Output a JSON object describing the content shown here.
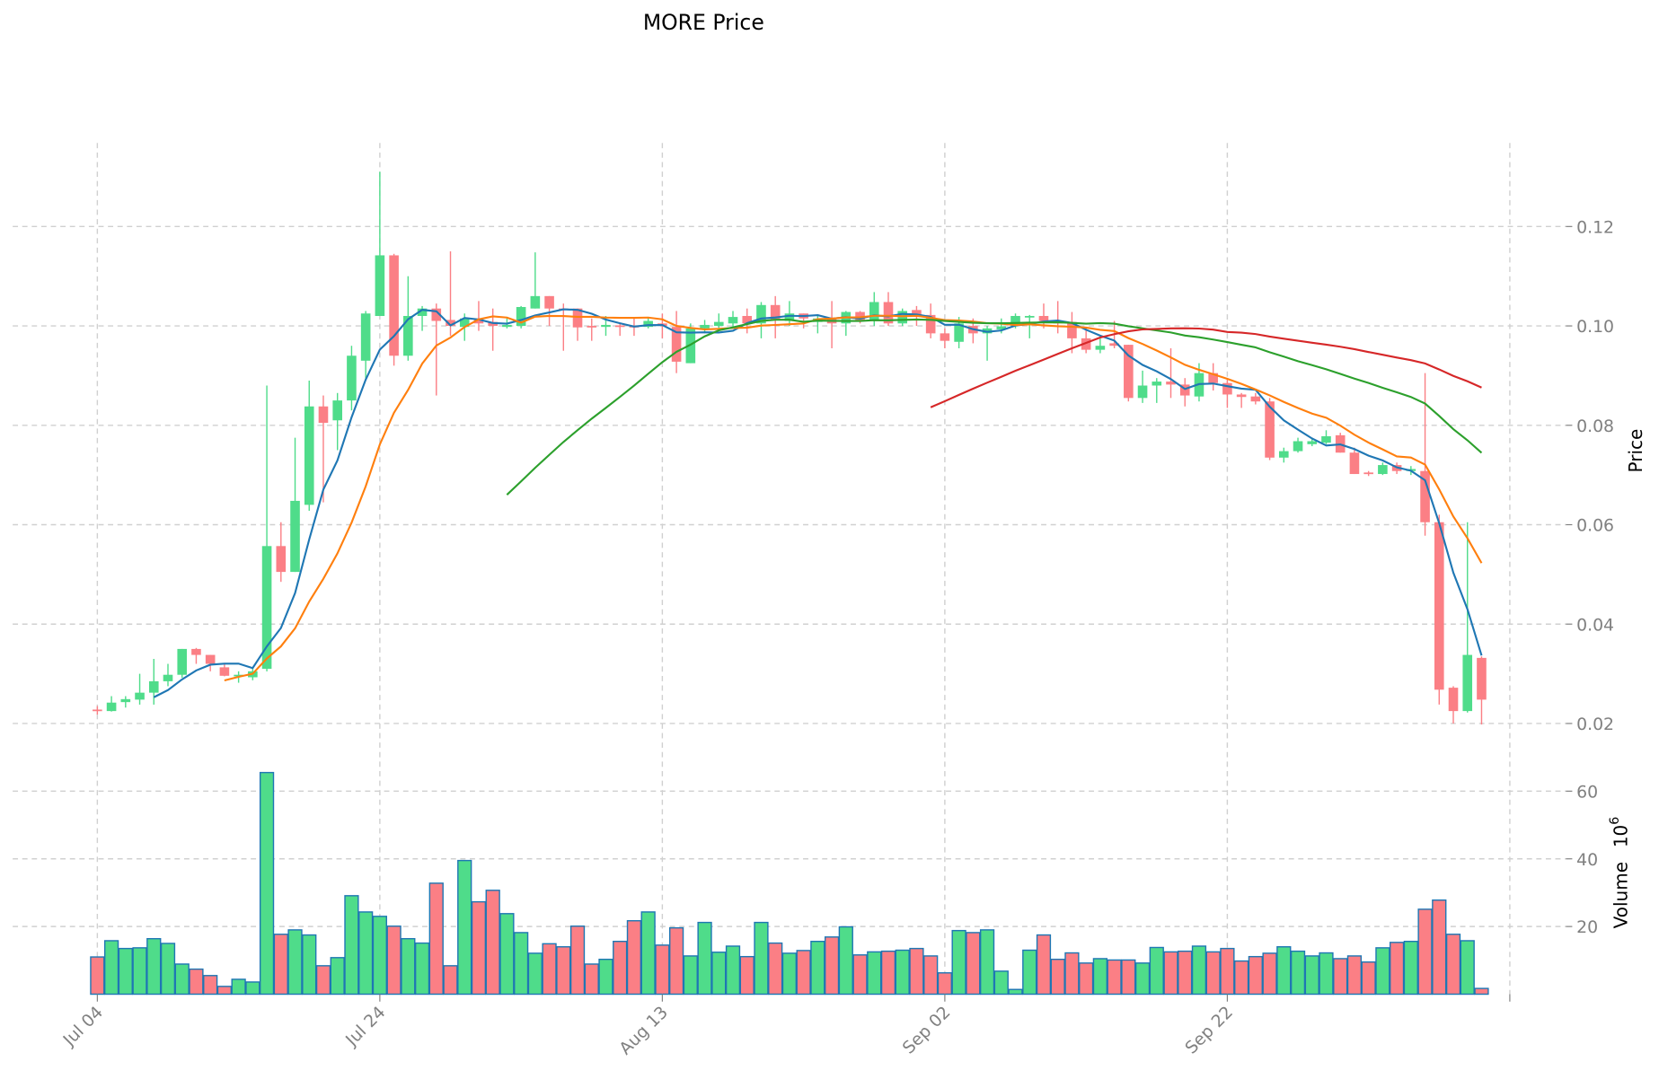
{
  "chart_data": {
    "type": "candlestick",
    "title": "MORE Price",
    "ylabel": "Price",
    "volume_label": "Volume",
    "volume_unit": "10",
    "volume_exp": "6",
    "ylim": [
      0.016,
      0.135
    ],
    "volume_ylim": [
      0,
      68
    ],
    "grid": true,
    "legend": "none",
    "price_ticks": [
      "0.02",
      "0.04",
      "0.06",
      "0.08",
      "0.10",
      "0.12"
    ],
    "volume_ticks": [
      "20",
      "40",
      "60"
    ],
    "x_ticks": [
      {
        "day": 0,
        "label": "Jul 04"
      },
      {
        "day": 20,
        "label": "Jul 24"
      },
      {
        "day": 40,
        "label": "Aug 13"
      },
      {
        "day": 60,
        "label": "Sep 02"
      },
      {
        "day": 80,
        "label": "Sep 22"
      },
      {
        "day": 100,
        "label": ""
      }
    ],
    "start_date": "Jul 04",
    "moving_averages": [
      {
        "window": 5,
        "color": "#1f77b4"
      },
      {
        "window": 10,
        "color": "#ff7f0e"
      },
      {
        "window": 30,
        "color": "#2ca02c"
      },
      {
        "window": 60,
        "color": "#d62728"
      }
    ],
    "colors": {
      "up": "#4fdc8a",
      "down": "#fb7f85",
      "volume_edge": "#1f77b4"
    },
    "ohlc": [
      [
        0.0228,
        0.0235,
        0.0218,
        0.0226
      ],
      [
        0.0225,
        0.0255,
        0.0224,
        0.0242
      ],
      [
        0.0243,
        0.0255,
        0.0232,
        0.0249
      ],
      [
        0.0248,
        0.03,
        0.0238,
        0.0262
      ],
      [
        0.0262,
        0.033,
        0.0238,
        0.0285
      ],
      [
        0.0285,
        0.032,
        0.0275,
        0.0298
      ],
      [
        0.0298,
        0.035,
        0.0292,
        0.035
      ],
      [
        0.035,
        0.0352,
        0.032,
        0.0338
      ],
      [
        0.0338,
        0.0338,
        0.0305,
        0.032
      ],
      [
        0.0313,
        0.032,
        0.0295,
        0.0296
      ],
      [
        0.0296,
        0.0305,
        0.0282,
        0.0298
      ],
      [
        0.0293,
        0.031,
        0.0287,
        0.0305
      ],
      [
        0.031,
        0.088,
        0.0305,
        0.0557
      ],
      [
        0.0557,
        0.0605,
        0.0485,
        0.0505
      ],
      [
        0.0505,
        0.0775,
        0.0505,
        0.0648
      ],
      [
        0.064,
        0.089,
        0.0628,
        0.0838
      ],
      [
        0.0838,
        0.086,
        0.0645,
        0.0805
      ],
      [
        0.081,
        0.0865,
        0.075,
        0.085
      ],
      [
        0.085,
        0.096,
        0.083,
        0.094
      ],
      [
        0.093,
        0.103,
        0.089,
        0.1025
      ],
      [
        0.102,
        0.131,
        0.102,
        0.1142
      ],
      [
        0.1142,
        0.1145,
        0.092,
        0.094
      ],
      [
        0.094,
        0.11,
        0.093,
        0.102
      ],
      [
        0.102,
        0.104,
        0.099,
        0.1035
      ],
      [
        0.1035,
        0.1045,
        0.086,
        0.101
      ],
      [
        0.1012,
        0.115,
        0.098,
        0.1
      ],
      [
        0.0998,
        0.1025,
        0.097,
        0.1015
      ],
      [
        0.1015,
        0.105,
        0.099,
        0.1005
      ],
      [
        0.1008,
        0.1035,
        0.095,
        0.1
      ],
      [
        0.0998,
        0.1015,
        0.0995,
        0.1002
      ],
      [
        0.1,
        0.104,
        0.0995,
        0.1038
      ],
      [
        0.1035,
        0.1148,
        0.1035,
        0.106
      ],
      [
        0.106,
        0.106,
        0.1,
        0.1035
      ],
      [
        0.1035,
        0.1045,
        0.095,
        0.1032
      ],
      [
        0.1035,
        0.1035,
        0.097,
        0.0997
      ],
      [
        0.1,
        0.1015,
        0.097,
        0.0998
      ],
      [
        0.0998,
        0.102,
        0.098,
        0.1002
      ],
      [
        0.1001,
        0.1005,
        0.098,
        0.0998
      ],
      [
        0.1,
        0.1015,
        0.098,
        0.0999
      ],
      [
        0.0998,
        0.1018,
        0.0995,
        0.101
      ],
      [
        0.1005,
        0.1025,
        0.0975,
        0.1
      ],
      [
        0.0998,
        0.103,
        0.0905,
        0.0928
      ],
      [
        0.0925,
        0.1005,
        0.0925,
        0.0995
      ],
      [
        0.0995,
        0.1012,
        0.0985,
        0.1002
      ],
      [
        0.1,
        0.1025,
        0.099,
        0.1008
      ],
      [
        0.1005,
        0.103,
        0.0995,
        0.1018
      ],
      [
        0.102,
        0.1035,
        0.0985,
        0.1005
      ],
      [
        0.1005,
        0.1048,
        0.0975,
        0.1042
      ],
      [
        0.1042,
        0.106,
        0.0975,
        0.1012
      ],
      [
        0.101,
        0.105,
        0.1,
        0.1025
      ],
      [
        0.1025,
        0.1025,
        0.0995,
        0.1015
      ],
      [
        0.1008,
        0.1022,
        0.0985,
        0.1015
      ],
      [
        0.1015,
        0.105,
        0.0955,
        0.1005
      ],
      [
        0.1005,
        0.103,
        0.098,
        0.1028
      ],
      [
        0.1028,
        0.103,
        0.1005,
        0.101
      ],
      [
        0.101,
        0.1068,
        0.1,
        0.1048
      ],
      [
        0.1048,
        0.1068,
        0.1,
        0.1005
      ],
      [
        0.1005,
        0.1035,
        0.1,
        0.103
      ],
      [
        0.1032,
        0.104,
        0.1,
        0.1022
      ],
      [
        0.1022,
        0.1045,
        0.0975,
        0.0985
      ],
      [
        0.0985,
        0.0995,
        0.0955,
        0.097
      ],
      [
        0.0968,
        0.1018,
        0.0955,
        0.1005
      ],
      [
        0.1,
        0.1015,
        0.0965,
        0.0985
      ],
      [
        0.0985,
        0.1,
        0.093,
        0.0995
      ],
      [
        0.0993,
        0.1015,
        0.0985,
        0.0999
      ],
      [
        0.1,
        0.1025,
        0.0995,
        0.102
      ],
      [
        0.1017,
        0.1022,
        0.0975,
        0.102
      ],
      [
        0.102,
        0.1045,
        0.0995,
        0.101
      ],
      [
        0.101,
        0.105,
        0.0985,
        0.1005
      ],
      [
        0.1008,
        0.1028,
        0.0945,
        0.0975
      ],
      [
        0.0975,
        0.0995,
        0.0945,
        0.0952
      ],
      [
        0.0952,
        0.0975,
        0.0945,
        0.096
      ],
      [
        0.0965,
        0.101,
        0.0955,
        0.096
      ],
      [
        0.0962,
        0.0962,
        0.0848,
        0.0855
      ],
      [
        0.0855,
        0.091,
        0.0845,
        0.088
      ],
      [
        0.088,
        0.0895,
        0.0845,
        0.0888
      ],
      [
        0.0888,
        0.0955,
        0.0855,
        0.0882
      ],
      [
        0.0882,
        0.0895,
        0.0838,
        0.086
      ],
      [
        0.0858,
        0.0925,
        0.0848,
        0.0905
      ],
      [
        0.0905,
        0.0925,
        0.087,
        0.0885
      ],
      [
        0.0885,
        0.0895,
        0.0835,
        0.0862
      ],
      [
        0.0862,
        0.0865,
        0.0835,
        0.0857
      ],
      [
        0.0858,
        0.0865,
        0.0842,
        0.0848
      ],
      [
        0.0848,
        0.0855,
        0.073,
        0.0735
      ],
      [
        0.0735,
        0.0755,
        0.0725,
        0.0748
      ],
      [
        0.0748,
        0.0775,
        0.0745,
        0.0768
      ],
      [
        0.0762,
        0.0775,
        0.0758,
        0.0768
      ],
      [
        0.0765,
        0.079,
        0.0762,
        0.0778
      ],
      [
        0.078,
        0.0785,
        0.0745,
        0.0745
      ],
      [
        0.0745,
        0.0755,
        0.0702,
        0.0702
      ],
      [
        0.0705,
        0.0708,
        0.0698,
        0.0702
      ],
      [
        0.0702,
        0.0725,
        0.07,
        0.072
      ],
      [
        0.072,
        0.0725,
        0.0702,
        0.0708
      ],
      [
        0.0708,
        0.0718,
        0.07,
        0.0712
      ],
      [
        0.0708,
        0.0905,
        0.0578,
        0.0605
      ],
      [
        0.0605,
        0.062,
        0.0238,
        0.0268
      ],
      [
        0.0272,
        0.0275,
        0.02,
        0.0225
      ],
      [
        0.0225,
        0.0605,
        0.0222,
        0.0338
      ],
      [
        0.0332,
        0.0335,
        0.0198,
        0.0248
      ]
    ],
    "volume": [
      11.0,
      15.8,
      13.5,
      13.7,
      16.4,
      15.0,
      8.9,
      7.4,
      5.5,
      2.3,
      4.4,
      3.6,
      65.5,
      17.7,
      19.0,
      17.5,
      8.4,
      10.8,
      29.1,
      24.3,
      23.0,
      20.1,
      16.4,
      15.1,
      32.8,
      8.4,
      39.5,
      27.3,
      30.7,
      23.8,
      18.2,
      12.1,
      14.9,
      14.0,
      20.1,
      8.9,
      10.3,
      15.6,
      21.7,
      24.3,
      14.5,
      19.6,
      11.3,
      21.2,
      12.4,
      14.2,
      11.1,
      21.2,
      15.1,
      12.1,
      12.9,
      15.6,
      16.9,
      19.9,
      11.6,
      12.5,
      12.7,
      13.0,
      13.5,
      11.3,
      6.3,
      18.8,
      18.2,
      19.0,
      6.8,
      1.4,
      13.0,
      17.5,
      10.3,
      12.2,
      9.2,
      10.5,
      10.1,
      10.1,
      9.2,
      13.8,
      12.5,
      12.7,
      14.2,
      12.5,
      13.5,
      9.8,
      11.1,
      12.1,
      14.0,
      12.7,
      11.3,
      12.2,
      10.5,
      11.3,
      9.5,
      13.7,
      15.3,
      15.6,
      25.1,
      27.8,
      17.7,
      15.8,
      1.7
    ]
  }
}
